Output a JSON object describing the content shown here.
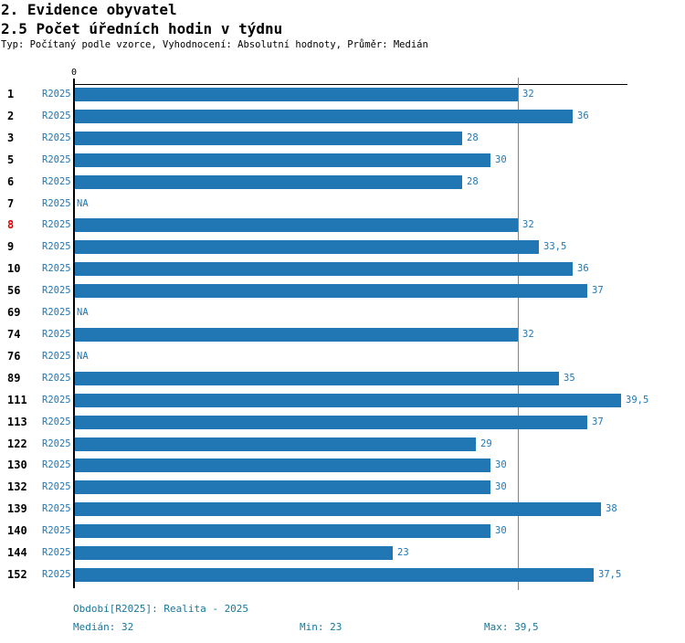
{
  "header": {
    "title": "2. Evidence obyvatel",
    "subtitle": "2.5 Počet úředních hodin v týdnu",
    "meta": "Typ: Počítaný podle vzorce, Vyhodnocení: Absolutní hodnoty, Průměr: Medián"
  },
  "chart_data": {
    "type": "bar",
    "orientation": "horizontal",
    "title": "2.5 Počet úředních hodin v týdnu",
    "series_label": "R2025",
    "axis": {
      "origin_label": "0",
      "xlim": [
        0,
        40
      ],
      "median_value": 32,
      "grid": false
    },
    "rows": [
      {
        "id": "1",
        "value": 32,
        "label": "32"
      },
      {
        "id": "2",
        "value": 36,
        "label": "36"
      },
      {
        "id": "3",
        "value": 28,
        "label": "28"
      },
      {
        "id": "5",
        "value": 30,
        "label": "30"
      },
      {
        "id": "6",
        "value": 28,
        "label": "28"
      },
      {
        "id": "7",
        "value": null,
        "label": "NA"
      },
      {
        "id": "8",
        "value": 32,
        "label": "32",
        "highlight": true
      },
      {
        "id": "9",
        "value": 33.5,
        "label": "33,5"
      },
      {
        "id": "10",
        "value": 36,
        "label": "36"
      },
      {
        "id": "56",
        "value": 37,
        "label": "37"
      },
      {
        "id": "69",
        "value": null,
        "label": "NA"
      },
      {
        "id": "74",
        "value": 32,
        "label": "32"
      },
      {
        "id": "76",
        "value": null,
        "label": "NA"
      },
      {
        "id": "89",
        "value": 35,
        "label": "35"
      },
      {
        "id": "111",
        "value": 39.5,
        "label": "39,5"
      },
      {
        "id": "113",
        "value": 37,
        "label": "37"
      },
      {
        "id": "122",
        "value": 29,
        "label": "29"
      },
      {
        "id": "130",
        "value": 30,
        "label": "30"
      },
      {
        "id": "132",
        "value": 30,
        "label": "30"
      },
      {
        "id": "139",
        "value": 38,
        "label": "38"
      },
      {
        "id": "140",
        "value": 30,
        "label": "30"
      },
      {
        "id": "144",
        "value": 23,
        "label": "23"
      },
      {
        "id": "152",
        "value": 37.5,
        "label": "37,5"
      }
    ]
  },
  "footer": {
    "period": "Období[R2025]: Realita - 2025",
    "median": "Medián: 32",
    "min": "Min: 23",
    "max": "Max: 39,5"
  },
  "colors": {
    "bar": "#2077B4",
    "blue_text": "#1F77B4",
    "footer_text": "#17789C",
    "highlight_row_number": "#E60000",
    "axis": "#000000",
    "median_line": "#4A94C8"
  }
}
